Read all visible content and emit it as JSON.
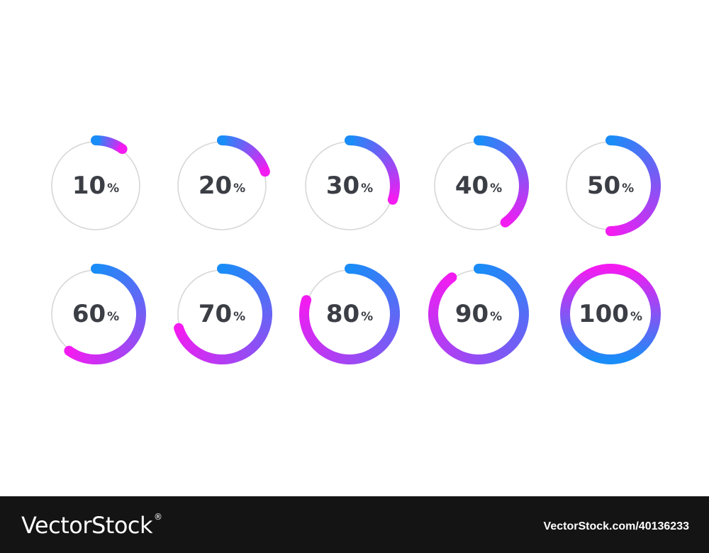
{
  "colors": {
    "start": "#1a8cf7",
    "end": "#f21cf1",
    "track": "#d7d7d7",
    "text": "#3b3e44",
    "footer_bg": "#141414"
  },
  "indicators": [
    {
      "value": 10,
      "number": "10",
      "unit": "%"
    },
    {
      "value": 20,
      "number": "20",
      "unit": "%"
    },
    {
      "value": 30,
      "number": "30",
      "unit": "%"
    },
    {
      "value": 40,
      "number": "40",
      "unit": "%"
    },
    {
      "value": 50,
      "number": "50",
      "unit": "%"
    },
    {
      "value": 60,
      "number": "60",
      "unit": "%"
    },
    {
      "value": 70,
      "number": "70",
      "unit": "%"
    },
    {
      "value": 80,
      "number": "80",
      "unit": "%"
    },
    {
      "value": 90,
      "number": "90",
      "unit": "%"
    },
    {
      "value": 100,
      "number": "100",
      "unit": "%"
    }
  ],
  "footer": {
    "brand": "VectorStock",
    "reg": "®",
    "url": "VectorStock.com/40136233"
  }
}
